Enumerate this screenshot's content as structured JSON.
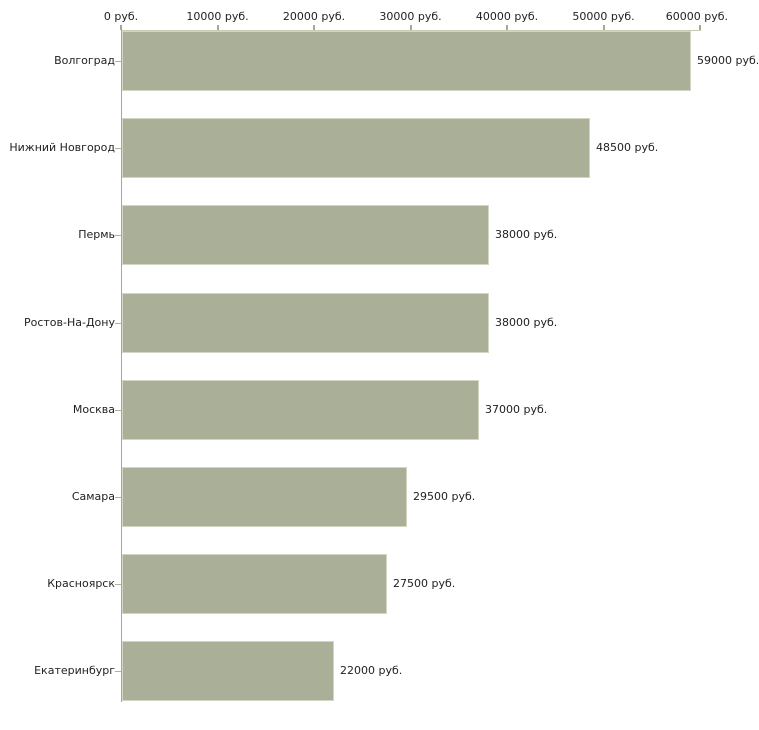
{
  "chart_data": {
    "type": "bar",
    "orientation": "horizontal",
    "categories": [
      "Волгоград",
      "Нижний Новгород",
      "Пермь",
      "Ростов-На-Дону",
      "Москва",
      "Самара",
      "Красноярск",
      "Екатеринбург"
    ],
    "values": [
      59000,
      48500,
      38000,
      38000,
      37000,
      29500,
      27500,
      22000
    ],
    "value_labels": [
      "59000 руб.",
      "48500 руб.",
      "38000 руб.",
      "38000 руб.",
      "37000 руб.",
      "29500 руб.",
      "27500 руб.",
      "22000 руб."
    ],
    "title": "",
    "xlabel": "",
    "ylabel": "",
    "x_axis": {
      "position": "top",
      "range": [
        0,
        60000
      ],
      "ticks": [
        0,
        10000,
        20000,
        30000,
        40000,
        50000,
        60000
      ],
      "tick_labels": [
        "0 руб.",
        "10000 руб.",
        "20000 руб.",
        "30000 руб.",
        "40000 руб.",
        "50000 руб.",
        "60000 руб."
      ],
      "unit": "руб."
    },
    "grid": false,
    "legend": false
  },
  "colors": {
    "background": "#ffffff",
    "bar_fill": "#aab097",
    "bar_border": "#d4d6c5",
    "y_axis_line": "#a6a6a6",
    "top_axis_line": "#c9cbb3",
    "tick_mark": "#a7a98b",
    "category_tick": "#b0b295",
    "text": "#222222"
  }
}
